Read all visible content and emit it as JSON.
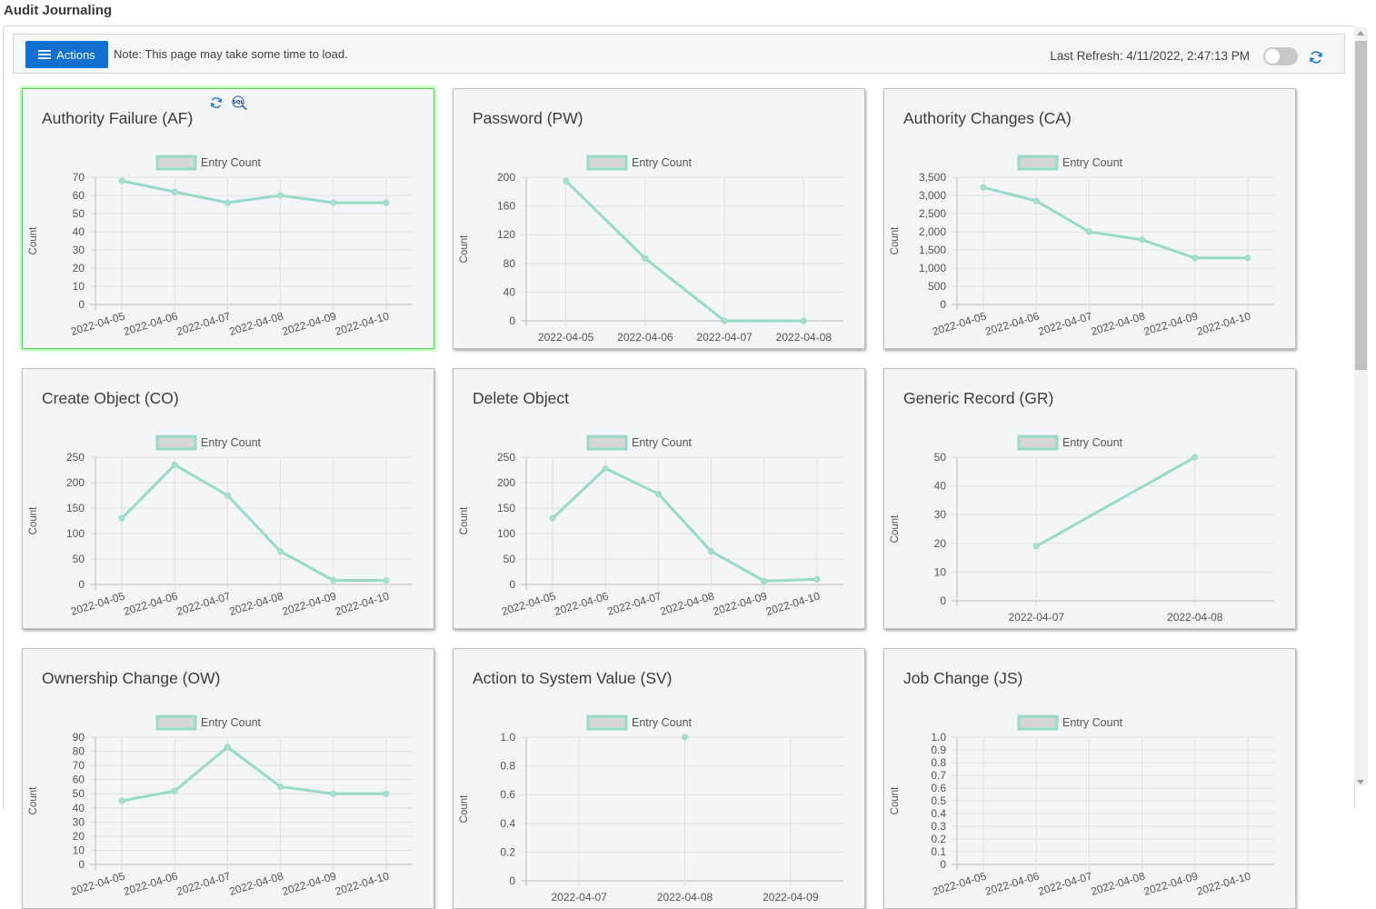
{
  "page": {
    "title": "Audit Journaling"
  },
  "toolbar": {
    "actions_label": "Actions",
    "note": "Note: This page may take some time to load.",
    "last_refresh": "Last Refresh: 4/11/2022, 2:47:13 PM",
    "auto_refresh_on": false
  },
  "colors": {
    "line": "#98dac8",
    "accent": "#0f6fd1",
    "selected_border": "#5ed65e"
  },
  "chart_data": [
    {
      "type": "line",
      "title": "Authority Failure (AF)",
      "legend": "Entry Count",
      "ylabel": "Count",
      "categories": [
        "2022-04-05",
        "2022-04-06",
        "2022-04-07",
        "2022-04-08",
        "2022-04-09",
        "2022-04-10"
      ],
      "values": [
        68,
        62,
        56,
        60,
        56,
        56
      ],
      "ylim": [
        0,
        70
      ],
      "yticks": [
        "0",
        "10",
        "20",
        "30",
        "40",
        "50",
        "60",
        "70"
      ],
      "rotate_x": true
    },
    {
      "type": "line",
      "title": "Password (PW)",
      "legend": "Entry Count",
      "ylabel": "Count",
      "categories": [
        "2022-04-05",
        "2022-04-06",
        "2022-04-07",
        "2022-04-08"
      ],
      "values": [
        195,
        87,
        0,
        0
      ],
      "ylim": [
        0,
        200
      ],
      "yticks": [
        "0",
        "40",
        "80",
        "120",
        "160",
        "200"
      ],
      "rotate_x": false
    },
    {
      "type": "line",
      "title": "Authority Changes (CA)",
      "legend": "Entry Count",
      "ylabel": "Count",
      "categories": [
        "2022-04-05",
        "2022-04-06",
        "2022-04-07",
        "2022-04-08",
        "2022-04-09",
        "2022-04-10"
      ],
      "values": [
        3220,
        2850,
        2000,
        1780,
        1280,
        1280
      ],
      "ylim": [
        0,
        3500
      ],
      "yticks": [
        "0",
        "500",
        "1,000",
        "1,500",
        "2,000",
        "2,500",
        "3,000",
        "3,500"
      ],
      "rotate_x": true
    },
    {
      "type": "line",
      "title": "Create Object (CO)",
      "legend": "Entry Count",
      "ylabel": "Count",
      "categories": [
        "2022-04-05",
        "2022-04-06",
        "2022-04-07",
        "2022-04-08",
        "2022-04-09",
        "2022-04-10"
      ],
      "values": [
        130,
        235,
        175,
        65,
        8,
        8
      ],
      "ylim": [
        0,
        250
      ],
      "yticks": [
        "0",
        "50",
        "100",
        "150",
        "200",
        "250"
      ],
      "rotate_x": true
    },
    {
      "type": "line",
      "title": "Delete Object",
      "legend": "Entry Count",
      "ylabel": "Count",
      "categories": [
        "2022-04-05",
        "2022-04-06",
        "2022-04-07",
        "2022-04-08",
        "2022-04-09",
        "2022-04-10"
      ],
      "values": [
        130,
        228,
        178,
        65,
        7,
        10
      ],
      "ylim": [
        0,
        250
      ],
      "yticks": [
        "0",
        "50",
        "100",
        "150",
        "200",
        "250"
      ],
      "rotate_x": true
    },
    {
      "type": "line",
      "title": "Generic Record (GR)",
      "legend": "Entry Count",
      "ylabel": "Count",
      "categories": [
        "2022-04-07",
        "2022-04-08"
      ],
      "values": [
        19,
        50
      ],
      "ylim": [
        0,
        50
      ],
      "yticks": [
        "0",
        "10",
        "20",
        "30",
        "40",
        "50"
      ],
      "rotate_x": false
    },
    {
      "type": "line",
      "title": "Ownership Change (OW)",
      "legend": "Entry Count",
      "ylabel": "Count",
      "categories": [
        "2022-04-05",
        "2022-04-06",
        "2022-04-07",
        "2022-04-08",
        "2022-04-09",
        "2022-04-10"
      ],
      "values": [
        45,
        52,
        83,
        55,
        50,
        50
      ],
      "ylim": [
        0,
        90
      ],
      "yticks": [
        "0",
        "10",
        "20",
        "30",
        "40",
        "50",
        "60",
        "70",
        "80",
        "90"
      ],
      "rotate_x": true
    },
    {
      "type": "line",
      "title": "Action to System Value (SV)",
      "legend": "Entry Count",
      "ylabel": "Count",
      "categories": [
        "2022-04-07",
        "2022-04-08",
        "2022-04-09"
      ],
      "values": [
        null,
        1,
        null
      ],
      "ylim": [
        0,
        1
      ],
      "yticks": [
        "0",
        "0.2",
        "0.4",
        "0.6",
        "0.8",
        "1.0"
      ],
      "rotate_x": false
    },
    {
      "type": "line",
      "title": "Job Change (JS)",
      "legend": "Entry Count",
      "ylabel": "Count",
      "categories": [
        "2022-04-05",
        "2022-04-06",
        "2022-04-07",
        "2022-04-08",
        "2022-04-09",
        "2022-04-10"
      ],
      "values": [
        null,
        null,
        null,
        null,
        null,
        null
      ],
      "ylim": [
        0,
        1
      ],
      "yticks": [
        "0",
        "0.1",
        "0.2",
        "0.3",
        "0.4",
        "0.5",
        "0.6",
        "0.7",
        "0.8",
        "0.9",
        "1.0"
      ],
      "rotate_x": true
    }
  ]
}
